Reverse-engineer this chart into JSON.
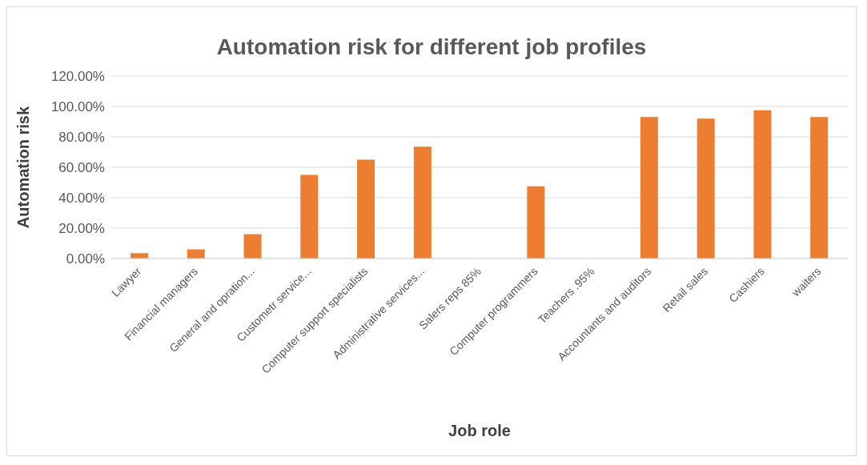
{
  "chart_data": {
    "type": "bar",
    "title": "Automation risk for different job profiles",
    "xlabel": "Job role",
    "ylabel": "Automation risk",
    "categories": [
      "Lawyer",
      "Financial managers",
      "General and opration...",
      "Custometr service...",
      "Computer support specialists",
      "Administrative services...",
      "Salers reps 85%",
      "Computer programmers",
      "Teachers .95%",
      "Accountants and auditors",
      "Retail sales",
      "Cashiers",
      "waiters"
    ],
    "values": [
      3.5,
      6,
      16,
      55,
      65,
      73.5,
      null,
      47.5,
      null,
      93,
      92,
      97.5,
      93
    ],
    "color": "#ed7d31",
    "ylim": [
      0,
      120
    ],
    "yticks": [
      {
        "value": 0,
        "label": "0.00%"
      },
      {
        "value": 20,
        "label": "20.00%"
      },
      {
        "value": 40,
        "label": "40.00%"
      },
      {
        "value": 60,
        "label": "60.00%"
      },
      {
        "value": 80,
        "label": "80.00%"
      },
      {
        "value": 100,
        "label": "100.00%"
      },
      {
        "value": 120,
        "label": "120.00%"
      }
    ],
    "grid": "y",
    "legend": false
  }
}
